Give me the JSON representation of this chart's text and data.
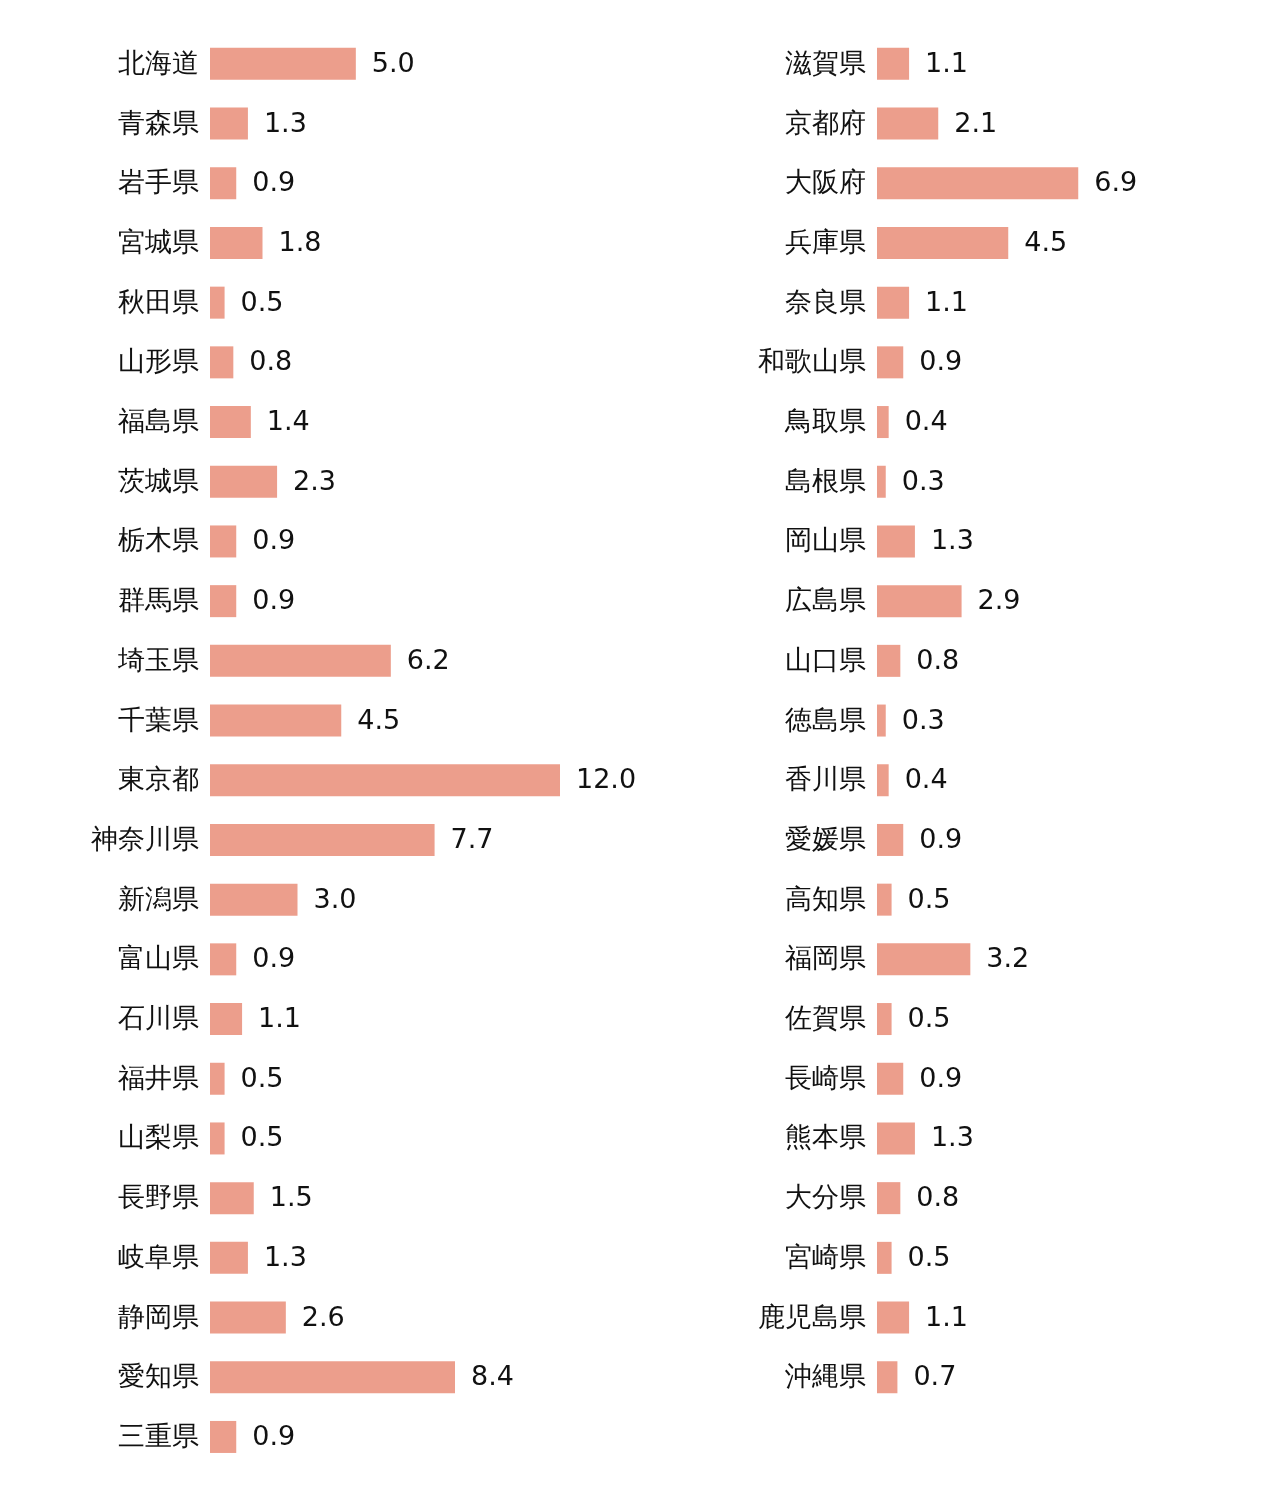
{
  "chart_data": [
    {
      "type": "bar",
      "orientation": "horizontal",
      "color": "#ec9e8c",
      "categories": [
        "北海道",
        "青森県",
        "岩手県",
        "宮城県",
        "秋田県",
        "山形県",
        "福島県",
        "茨城県",
        "栃木県",
        "群馬県",
        "埼玉県",
        "千葉県",
        "東京都",
        "神奈川県",
        "新潟県",
        "富山県",
        "石川県",
        "福井県",
        "山梨県",
        "長野県",
        "岐阜県",
        "静岡県",
        "愛知県",
        "三重県"
      ],
      "values": [
        5.0,
        1.3,
        0.9,
        1.8,
        0.5,
        0.8,
        1.4,
        2.3,
        0.9,
        0.9,
        6.2,
        4.5,
        12.0,
        7.7,
        3.0,
        0.9,
        1.1,
        0.5,
        0.5,
        1.5,
        1.3,
        2.6,
        8.4,
        0.9
      ],
      "value_labels": [
        "5.0",
        "1.3",
        "0.9",
        "1.8",
        "0.5",
        "0.8",
        "1.4",
        "2.3",
        "0.9",
        "0.9",
        "6.2",
        "4.5",
        "12.0",
        "7.7",
        "3.0",
        "0.9",
        "1.1",
        "0.5",
        "0.5",
        "1.5",
        "1.3",
        "2.6",
        "8.4",
        "0.9"
      ]
    },
    {
      "type": "bar",
      "orientation": "horizontal",
      "color": "#ec9e8c",
      "categories": [
        "滋賀県",
        "京都府",
        "大阪府",
        "兵庫県",
        "奈良県",
        "和歌山県",
        "鳥取県",
        "島根県",
        "岡山県",
        "広島県",
        "山口県",
        "徳島県",
        "香川県",
        "愛媛県",
        "高知県",
        "福岡県",
        "佐賀県",
        "長崎県",
        "熊本県",
        "大分県",
        "宮崎県",
        "鹿児島県",
        "沖縄県"
      ],
      "values": [
        1.1,
        2.1,
        6.9,
        4.5,
        1.1,
        0.9,
        0.4,
        0.3,
        1.3,
        2.9,
        0.8,
        0.3,
        0.4,
        0.9,
        0.5,
        3.2,
        0.5,
        0.9,
        1.3,
        0.8,
        0.5,
        1.1,
        0.7
      ],
      "value_labels": [
        "1.1",
        "2.1",
        "6.9",
        "4.5",
        "1.1",
        "0.9",
        "0.4",
        "0.3",
        "1.3",
        "2.9",
        "0.8",
        "0.3",
        "0.4",
        "0.9",
        "0.5",
        "3.2",
        "0.5",
        "0.9",
        "1.3",
        "0.8",
        "0.5",
        "1.1",
        "0.7"
      ]
    }
  ]
}
